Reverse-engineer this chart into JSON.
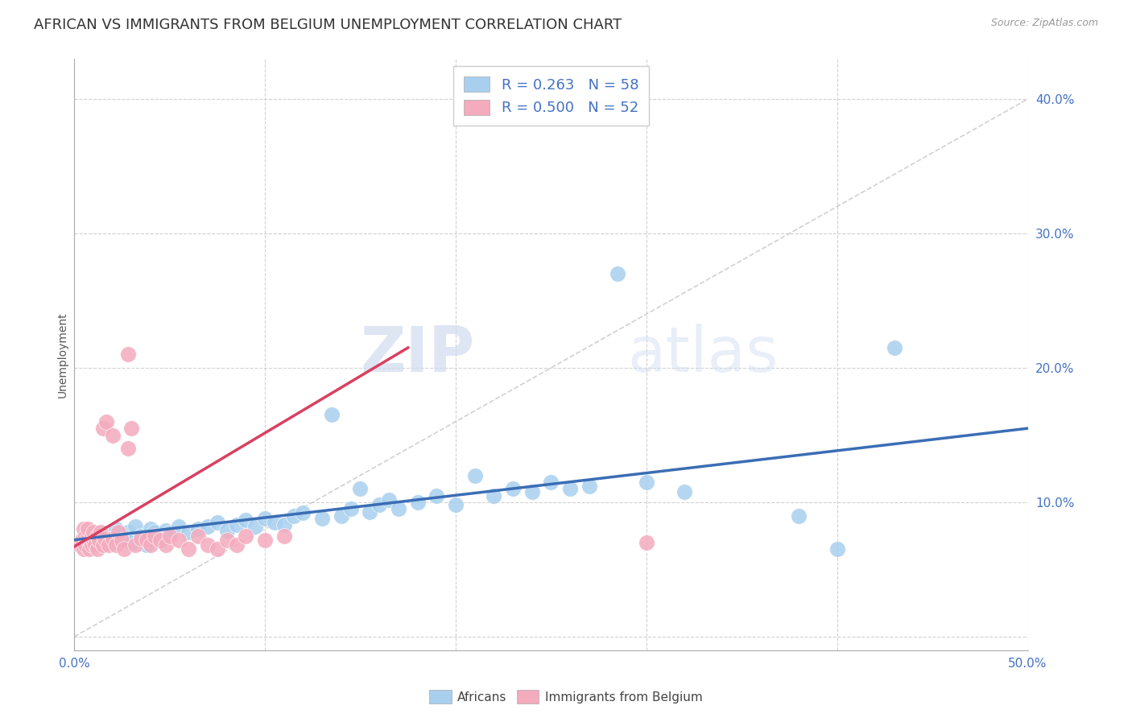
{
  "title": "AFRICAN VS IMMIGRANTS FROM BELGIUM UNEMPLOYMENT CORRELATION CHART",
  "source": "Source: ZipAtlas.com",
  "ylabel": "Unemployment",
  "watermark_zip": "ZIP",
  "watermark_atlas": "atlas",
  "xlim": [
    0.0,
    0.5
  ],
  "ylim": [
    -0.01,
    0.43
  ],
  "blue_R": 0.263,
  "blue_N": 58,
  "pink_R": 0.5,
  "pink_N": 52,
  "blue_color": "#A8CFEE",
  "pink_color": "#F4ABBE",
  "blue_line_color": "#3A6DB5",
  "pink_line_color": "#D94060",
  "trendline_color": "#CCCCCC",
  "blue_line_x0": 0.0,
  "blue_line_y0": 0.072,
  "blue_line_x1": 0.5,
  "blue_line_y1": 0.155,
  "pink_line_x0": 0.0,
  "pink_line_y0": 0.067,
  "pink_line_x1": 0.175,
  "pink_line_y1": 0.215,
  "blue_scatter": [
    [
      0.005,
      0.075
    ],
    [
      0.008,
      0.072
    ],
    [
      0.01,
      0.078
    ],
    [
      0.012,
      0.07
    ],
    [
      0.015,
      0.068
    ],
    [
      0.018,
      0.073
    ],
    [
      0.02,
      0.075
    ],
    [
      0.022,
      0.08
    ],
    [
      0.025,
      0.072
    ],
    [
      0.028,
      0.078
    ],
    [
      0.03,
      0.07
    ],
    [
      0.032,
      0.082
    ],
    [
      0.035,
      0.075
    ],
    [
      0.038,
      0.068
    ],
    [
      0.04,
      0.08
    ],
    [
      0.042,
      0.078
    ],
    [
      0.045,
      0.072
    ],
    [
      0.048,
      0.079
    ],
    [
      0.05,
      0.077
    ],
    [
      0.055,
      0.082
    ],
    [
      0.06,
      0.078
    ],
    [
      0.065,
      0.08
    ],
    [
      0.07,
      0.082
    ],
    [
      0.075,
      0.085
    ],
    [
      0.08,
      0.079
    ],
    [
      0.085,
      0.083
    ],
    [
      0.09,
      0.087
    ],
    [
      0.095,
      0.082
    ],
    [
      0.1,
      0.088
    ],
    [
      0.105,
      0.085
    ],
    [
      0.11,
      0.083
    ],
    [
      0.115,
      0.09
    ],
    [
      0.12,
      0.092
    ],
    [
      0.13,
      0.088
    ],
    [
      0.135,
      0.165
    ],
    [
      0.14,
      0.09
    ],
    [
      0.145,
      0.095
    ],
    [
      0.15,
      0.11
    ],
    [
      0.155,
      0.093
    ],
    [
      0.16,
      0.098
    ],
    [
      0.165,
      0.102
    ],
    [
      0.17,
      0.095
    ],
    [
      0.18,
      0.1
    ],
    [
      0.19,
      0.105
    ],
    [
      0.2,
      0.098
    ],
    [
      0.21,
      0.12
    ],
    [
      0.22,
      0.105
    ],
    [
      0.23,
      0.11
    ],
    [
      0.24,
      0.108
    ],
    [
      0.25,
      0.115
    ],
    [
      0.26,
      0.11
    ],
    [
      0.27,
      0.112
    ],
    [
      0.285,
      0.27
    ],
    [
      0.3,
      0.115
    ],
    [
      0.32,
      0.108
    ],
    [
      0.38,
      0.09
    ],
    [
      0.4,
      0.065
    ],
    [
      0.43,
      0.215
    ]
  ],
  "pink_scatter": [
    [
      0.003,
      0.068
    ],
    [
      0.004,
      0.072
    ],
    [
      0.005,
      0.065
    ],
    [
      0.005,
      0.08
    ],
    [
      0.006,
      0.075
    ],
    [
      0.006,
      0.068
    ],
    [
      0.007,
      0.073
    ],
    [
      0.007,
      0.08
    ],
    [
      0.008,
      0.07
    ],
    [
      0.008,
      0.065
    ],
    [
      0.009,
      0.075
    ],
    [
      0.009,
      0.068
    ],
    [
      0.01,
      0.072
    ],
    [
      0.01,
      0.078
    ],
    [
      0.011,
      0.068
    ],
    [
      0.012,
      0.075
    ],
    [
      0.012,
      0.065
    ],
    [
      0.013,
      0.072
    ],
    [
      0.014,
      0.078
    ],
    [
      0.015,
      0.068
    ],
    [
      0.015,
      0.155
    ],
    [
      0.016,
      0.073
    ],
    [
      0.017,
      0.16
    ],
    [
      0.018,
      0.068
    ],
    [
      0.02,
      0.073
    ],
    [
      0.02,
      0.15
    ],
    [
      0.022,
      0.068
    ],
    [
      0.023,
      0.078
    ],
    [
      0.025,
      0.072
    ],
    [
      0.026,
      0.065
    ],
    [
      0.028,
      0.14
    ],
    [
      0.03,
      0.155
    ],
    [
      0.032,
      0.068
    ],
    [
      0.035,
      0.073
    ],
    [
      0.038,
      0.072
    ],
    [
      0.04,
      0.068
    ],
    [
      0.042,
      0.075
    ],
    [
      0.045,
      0.072
    ],
    [
      0.048,
      0.068
    ],
    [
      0.05,
      0.075
    ],
    [
      0.055,
      0.072
    ],
    [
      0.06,
      0.065
    ],
    [
      0.065,
      0.075
    ],
    [
      0.07,
      0.068
    ],
    [
      0.075,
      0.065
    ],
    [
      0.08,
      0.072
    ],
    [
      0.085,
      0.068
    ],
    [
      0.09,
      0.075
    ],
    [
      0.1,
      0.072
    ],
    [
      0.11,
      0.075
    ],
    [
      0.028,
      0.21
    ],
    [
      0.3,
      0.07
    ]
  ],
  "legend_label_blue": "Africans",
  "legend_label_pink": "Immigrants from Belgium",
  "title_fontsize": 13,
  "axis_fontsize": 10,
  "tick_fontsize": 11
}
